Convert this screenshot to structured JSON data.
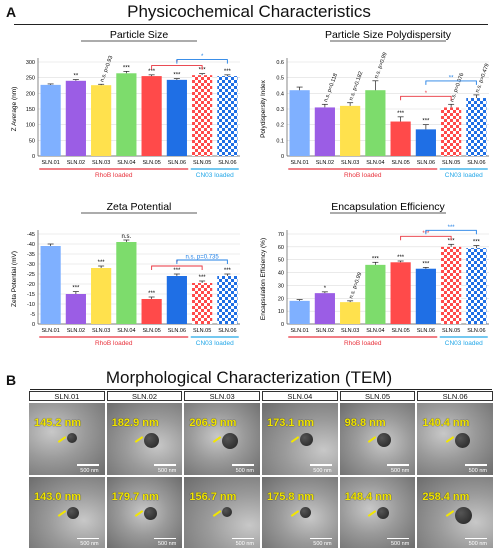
{
  "section_a": {
    "letter": "A",
    "title": "Physicochemical Characteristics"
  },
  "section_b": {
    "letter": "B",
    "title": "Morphological Characterization (TEM)"
  },
  "chart_data": [
    {
      "type": "bar",
      "title": "Particle Size",
      "ylabel": "Z Average (nm)",
      "ylim": [
        0,
        300
      ],
      "yticks": [
        0,
        50,
        100,
        150,
        200,
        250,
        300
      ],
      "categories": [
        "SLN.01",
        "SLN.02",
        "SLN.03",
        "SLN.04",
        "SLN.05",
        "SLN.06",
        "SLN.05",
        "SLN.06"
      ],
      "values": [
        227,
        240,
        226,
        264,
        255,
        243,
        258,
        255
      ],
      "errors": [
        3,
        4,
        3,
        6,
        4,
        4,
        5,
        4
      ],
      "bar_colors": [
        "#7fb0ff",
        "#9b5de5",
        "#ffe14d",
        "#7ddc6c",
        "#ff4a4a",
        "#1f6fe5",
        "checker-red",
        "checker-blue"
      ],
      "annotations": [
        "",
        "**",
        "n.s. p=0.93",
        "***",
        "***",
        "***",
        "***",
        "***"
      ],
      "brackets": [
        {
          "from": 4,
          "to": 6,
          "label": "*",
          "color": "#e8323c"
        },
        {
          "from": 5,
          "to": 7,
          "label": "*",
          "color": "#1f7fe5"
        }
      ],
      "groups": [
        {
          "label": "RhoB loaded",
          "color": "#e8323c",
          "from": 0,
          "to": 5
        },
        {
          "label": "CN03 loaded",
          "color": "#22a7e8",
          "from": 6,
          "to": 7
        }
      ]
    },
    {
      "type": "bar",
      "title": "Particle Size Polydispersity",
      "ylabel": "Polydispersity Index",
      "ylim": [
        0,
        0.6
      ],
      "yticks": [
        0,
        0.1,
        0.2,
        0.3,
        0.4,
        0.5,
        0.6
      ],
      "categories": [
        "SLN.01",
        "SLN.02",
        "SLN.03",
        "SLN.04",
        "SLN.05",
        "SLN.06",
        "SLN.05",
        "SLN.06"
      ],
      "values": [
        0.42,
        0.31,
        0.32,
        0.42,
        0.22,
        0.17,
        0.31,
        0.37
      ],
      "errors": [
        0.02,
        0.02,
        0.02,
        0.06,
        0.03,
        0.03,
        0.02,
        0.02
      ],
      "bar_colors": [
        "#7fb0ff",
        "#9b5de5",
        "#ffe14d",
        "#7ddc6c",
        "#ff4a4a",
        "#1f6fe5",
        "checker-red",
        "checker-blue"
      ],
      "annotations": [
        "",
        "n.s. p=0.118",
        "n.s. p=0.182",
        "n.s. p=0.99",
        "***",
        "***",
        "n.s. p=0.076",
        "n.s. p=0.479"
      ],
      "brackets": [
        {
          "from": 4,
          "to": 6,
          "label": "*",
          "color": "#e8323c"
        },
        {
          "from": 5,
          "to": 7,
          "label": "**",
          "color": "#1f7fe5"
        }
      ],
      "groups": [
        {
          "label": "RhoB loaded",
          "color": "#e8323c",
          "from": 0,
          "to": 5
        },
        {
          "label": "CN03 loaded",
          "color": "#22a7e8",
          "from": 6,
          "to": 7
        }
      ]
    },
    {
      "type": "bar",
      "title": "Zeta Potential",
      "ylabel": "Zeta Potential (mV)",
      "ylim": [
        0,
        -45
      ],
      "yticks": [
        0,
        -5,
        -10,
        -15,
        -20,
        -25,
        -30,
        -35,
        -40,
        -45
      ],
      "categories": [
        "SLN.01",
        "SLN.02",
        "SLN.03",
        "SLN.04",
        "SLN.05",
        "SLN.06",
        "SLN.05",
        "SLN.06"
      ],
      "values": [
        -39,
        -15,
        -28,
        -41,
        -12.5,
        -24,
        -20.5,
        -24
      ],
      "errors": [
        1,
        1.2,
        1,
        1,
        1,
        1,
        1,
        1
      ],
      "bar_colors": [
        "#7fb0ff",
        "#9b5de5",
        "#ffe14d",
        "#7ddc6c",
        "#ff4a4a",
        "#1f6fe5",
        "checker-red",
        "checker-blue"
      ],
      "annotations": [
        "",
        "***",
        "***",
        "n.s.",
        "***",
        "***",
        "***",
        "***"
      ],
      "brackets": [
        {
          "from": 4,
          "to": 6,
          "label": "*",
          "color": "#e8323c"
        },
        {
          "from": 5,
          "to": 7,
          "label": "n.s. p=0.735",
          "color": "#1f7fe5"
        }
      ],
      "groups": [
        {
          "label": "RhoB loaded",
          "color": "#e8323c",
          "from": 0,
          "to": 5
        },
        {
          "label": "CN03 loaded",
          "color": "#22a7e8",
          "from": 6,
          "to": 7
        }
      ]
    },
    {
      "type": "bar",
      "title": "Encapsulation Efficiency",
      "ylabel": "Encapsulation Efficiency (%)",
      "ylim": [
        0,
        70
      ],
      "yticks": [
        0,
        10,
        20,
        30,
        40,
        50,
        60,
        70
      ],
      "categories": [
        "SLN.01",
        "SLN.02",
        "SLN.03",
        "SLN.04",
        "SLN.05",
        "SLN.06",
        "SLN.05",
        "SLN.06"
      ],
      "values": [
        18,
        24,
        17,
        46,
        48,
        43,
        60,
        59
      ],
      "errors": [
        1,
        1,
        1,
        2,
        1,
        1,
        2,
        2
      ],
      "bar_colors": [
        "#7fb0ff",
        "#9b5de5",
        "#ffe14d",
        "#7ddc6c",
        "#ff4a4a",
        "#1f6fe5",
        "checker-red",
        "checker-blue"
      ],
      "annotations": [
        "",
        "*",
        "n.s. p=0.99",
        "***",
        "***",
        "***",
        "***",
        "***"
      ],
      "brackets": [
        {
          "from": 4,
          "to": 6,
          "label": "***",
          "color": "#e8323c"
        },
        {
          "from": 5,
          "to": 7,
          "label": "***",
          "color": "#1f7fe5"
        }
      ],
      "groups": [
        {
          "label": "RhoB loaded",
          "color": "#e8323c",
          "from": 0,
          "to": 5
        },
        {
          "label": "CN03 loaded",
          "color": "#22a7e8",
          "from": 6,
          "to": 7
        }
      ]
    }
  ],
  "tem": {
    "columns": [
      "SLN.01",
      "SLN.02",
      "SLN.03",
      "SLN.04",
      "SLN.05",
      "SLN.06"
    ],
    "scale_label": "500 nm",
    "rows": [
      [
        "145.2 nm",
        "182.9 nm",
        "206.9 nm",
        "173.1 nm",
        "98.8 nm",
        "140.4 nm"
      ],
      [
        "143.0 nm",
        "179.7 nm",
        "156.7 nm",
        "175.8 nm",
        "148.4 nm",
        "258.4 nm"
      ]
    ],
    "colors": {
      "size_label": "#f2e600"
    }
  }
}
